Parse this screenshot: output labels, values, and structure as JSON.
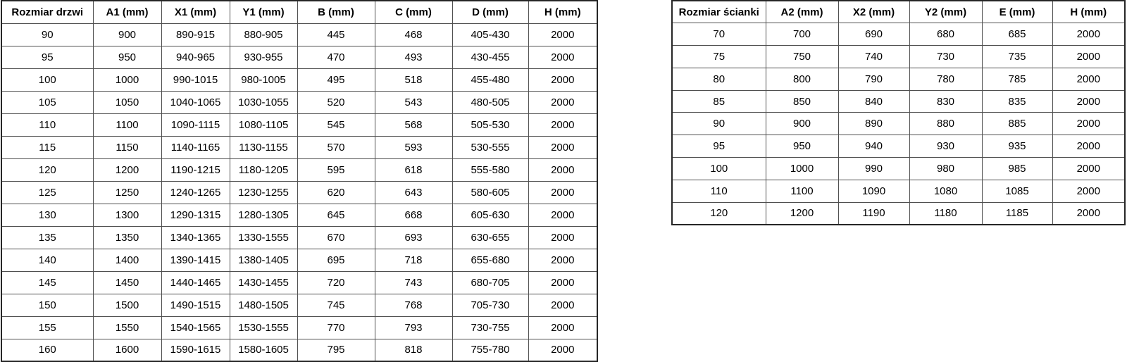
{
  "tables": [
    {
      "id": "doors",
      "name": "door-sizes-table",
      "headers": [
        "Rozmiar drzwi",
        "A1 (mm)",
        "X1 (mm)",
        "Y1 (mm)",
        "B (mm)",
        "C (mm)",
        "D (mm)",
        "H (mm)"
      ],
      "rows": [
        [
          "90",
          "900",
          "890-915",
          "880-905",
          "445",
          "468",
          "405-430",
          "2000"
        ],
        [
          "95",
          "950",
          "940-965",
          "930-955",
          "470",
          "493",
          "430-455",
          "2000"
        ],
        [
          "100",
          "1000",
          "990-1015",
          "980-1005",
          "495",
          "518",
          "455-480",
          "2000"
        ],
        [
          "105",
          "1050",
          "1040-1065",
          "1030-1055",
          "520",
          "543",
          "480-505",
          "2000"
        ],
        [
          "110",
          "1100",
          "1090-1115",
          "1080-1105",
          "545",
          "568",
          "505-530",
          "2000"
        ],
        [
          "115",
          "1150",
          "1140-1165",
          "1130-1155",
          "570",
          "593",
          "530-555",
          "2000"
        ],
        [
          "120",
          "1200",
          "1190-1215",
          "1180-1205",
          "595",
          "618",
          "555-580",
          "2000"
        ],
        [
          "125",
          "1250",
          "1240-1265",
          "1230-1255",
          "620",
          "643",
          "580-605",
          "2000"
        ],
        [
          "130",
          "1300",
          "1290-1315",
          "1280-1305",
          "645",
          "668",
          "605-630",
          "2000"
        ],
        [
          "135",
          "1350",
          "1340-1365",
          "1330-1555",
          "670",
          "693",
          "630-655",
          "2000"
        ],
        [
          "140",
          "1400",
          "1390-1415",
          "1380-1405",
          "695",
          "718",
          "655-680",
          "2000"
        ],
        [
          "145",
          "1450",
          "1440-1465",
          "1430-1455",
          "720",
          "743",
          "680-705",
          "2000"
        ],
        [
          "150",
          "1500",
          "1490-1515",
          "1480-1505",
          "745",
          "768",
          "705-730",
          "2000"
        ],
        [
          "155",
          "1550",
          "1540-1565",
          "1530-1555",
          "770",
          "793",
          "730-755",
          "2000"
        ],
        [
          "160",
          "1600",
          "1590-1615",
          "1580-1605",
          "795",
          "818",
          "755-780",
          "2000"
        ]
      ]
    },
    {
      "id": "walls",
      "name": "wall-sizes-table",
      "headers": [
        "Rozmiar ścianki",
        "A2 (mm)",
        "X2 (mm)",
        "Y2 (mm)",
        "E (mm)",
        "H (mm)"
      ],
      "rows": [
        [
          "70",
          "700",
          "690",
          "680",
          "685",
          "2000"
        ],
        [
          "75",
          "750",
          "740",
          "730",
          "735",
          "2000"
        ],
        [
          "80",
          "800",
          "790",
          "780",
          "785",
          "2000"
        ],
        [
          "85",
          "850",
          "840",
          "830",
          "835",
          "2000"
        ],
        [
          "90",
          "900",
          "890",
          "880",
          "885",
          "2000"
        ],
        [
          "95",
          "950",
          "940",
          "930",
          "935",
          "2000"
        ],
        [
          "100",
          "1000",
          "990",
          "980",
          "985",
          "2000"
        ],
        [
          "110",
          "1100",
          "1090",
          "1080",
          "1085",
          "2000"
        ],
        [
          "120",
          "1200",
          "1190",
          "1180",
          "1185",
          "2000"
        ]
      ]
    }
  ],
  "colors": {
    "background": "#ffffff",
    "text": "#000000",
    "border_outer": "#262626",
    "border_inner": "#4f4f4f"
  }
}
